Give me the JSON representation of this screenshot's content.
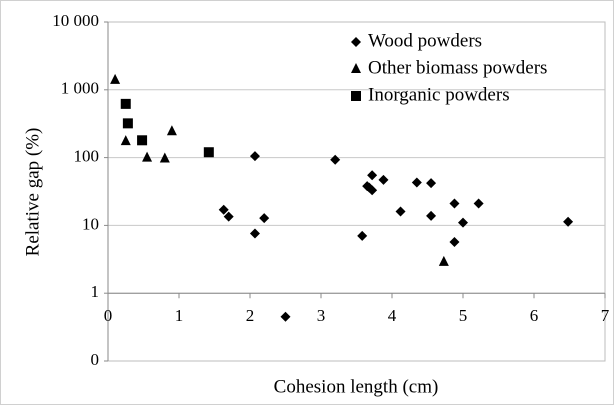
{
  "chart_data": {
    "type": "scatter",
    "xlabel": "Cohesion length (cm)",
    "ylabel": "Relative gap (%)",
    "xlim": [
      0,
      7
    ],
    "xticks": [
      0,
      1,
      2,
      3,
      4,
      5,
      6,
      7
    ],
    "ylim": [
      0.1,
      10000
    ],
    "yscale": "log",
    "yticks": [
      {
        "value": 0.1,
        "label": "0"
      },
      1,
      10,
      100,
      {
        "value": 1000,
        "label": "1 000"
      },
      {
        "value": 10000,
        "label": "10 000"
      }
    ],
    "x_axis_at": 1,
    "grid": true,
    "legend": "upper right",
    "series": [
      {
        "name": "Wood powders",
        "color": "#000000",
        "marker": "diamond",
        "x": [
          2.07,
          3.2,
          3.72,
          3.88,
          3.68,
          3.72,
          3.65,
          4.35,
          4.55,
          1.63,
          1.7,
          2.2,
          2.07,
          4.12,
          4.55,
          4.88,
          5.22,
          5.0,
          4.88,
          3.58,
          6.48,
          2.5
        ],
        "values": [
          105,
          93,
          55,
          47,
          36,
          33,
          38,
          43,
          42,
          17,
          13.5,
          12.8,
          7.6,
          16,
          13.8,
          21,
          21,
          11,
          5.7,
          7,
          11.3,
          0.45
        ]
      },
      {
        "name": "Other biomass powders",
        "color": "#000000",
        "marker": "triangle",
        "x": [
          0.1,
          0.25,
          0.55,
          0.8,
          0.9,
          4.73
        ],
        "values": [
          1400,
          175,
          100,
          97,
          245,
          2.9
        ]
      },
      {
        "name": "Inorganic powders",
        "color": "#000000",
        "marker": "square",
        "x": [
          0.25,
          0.28,
          0.48,
          1.42
        ],
        "values": [
          620,
          320,
          180,
          120
        ]
      }
    ]
  }
}
